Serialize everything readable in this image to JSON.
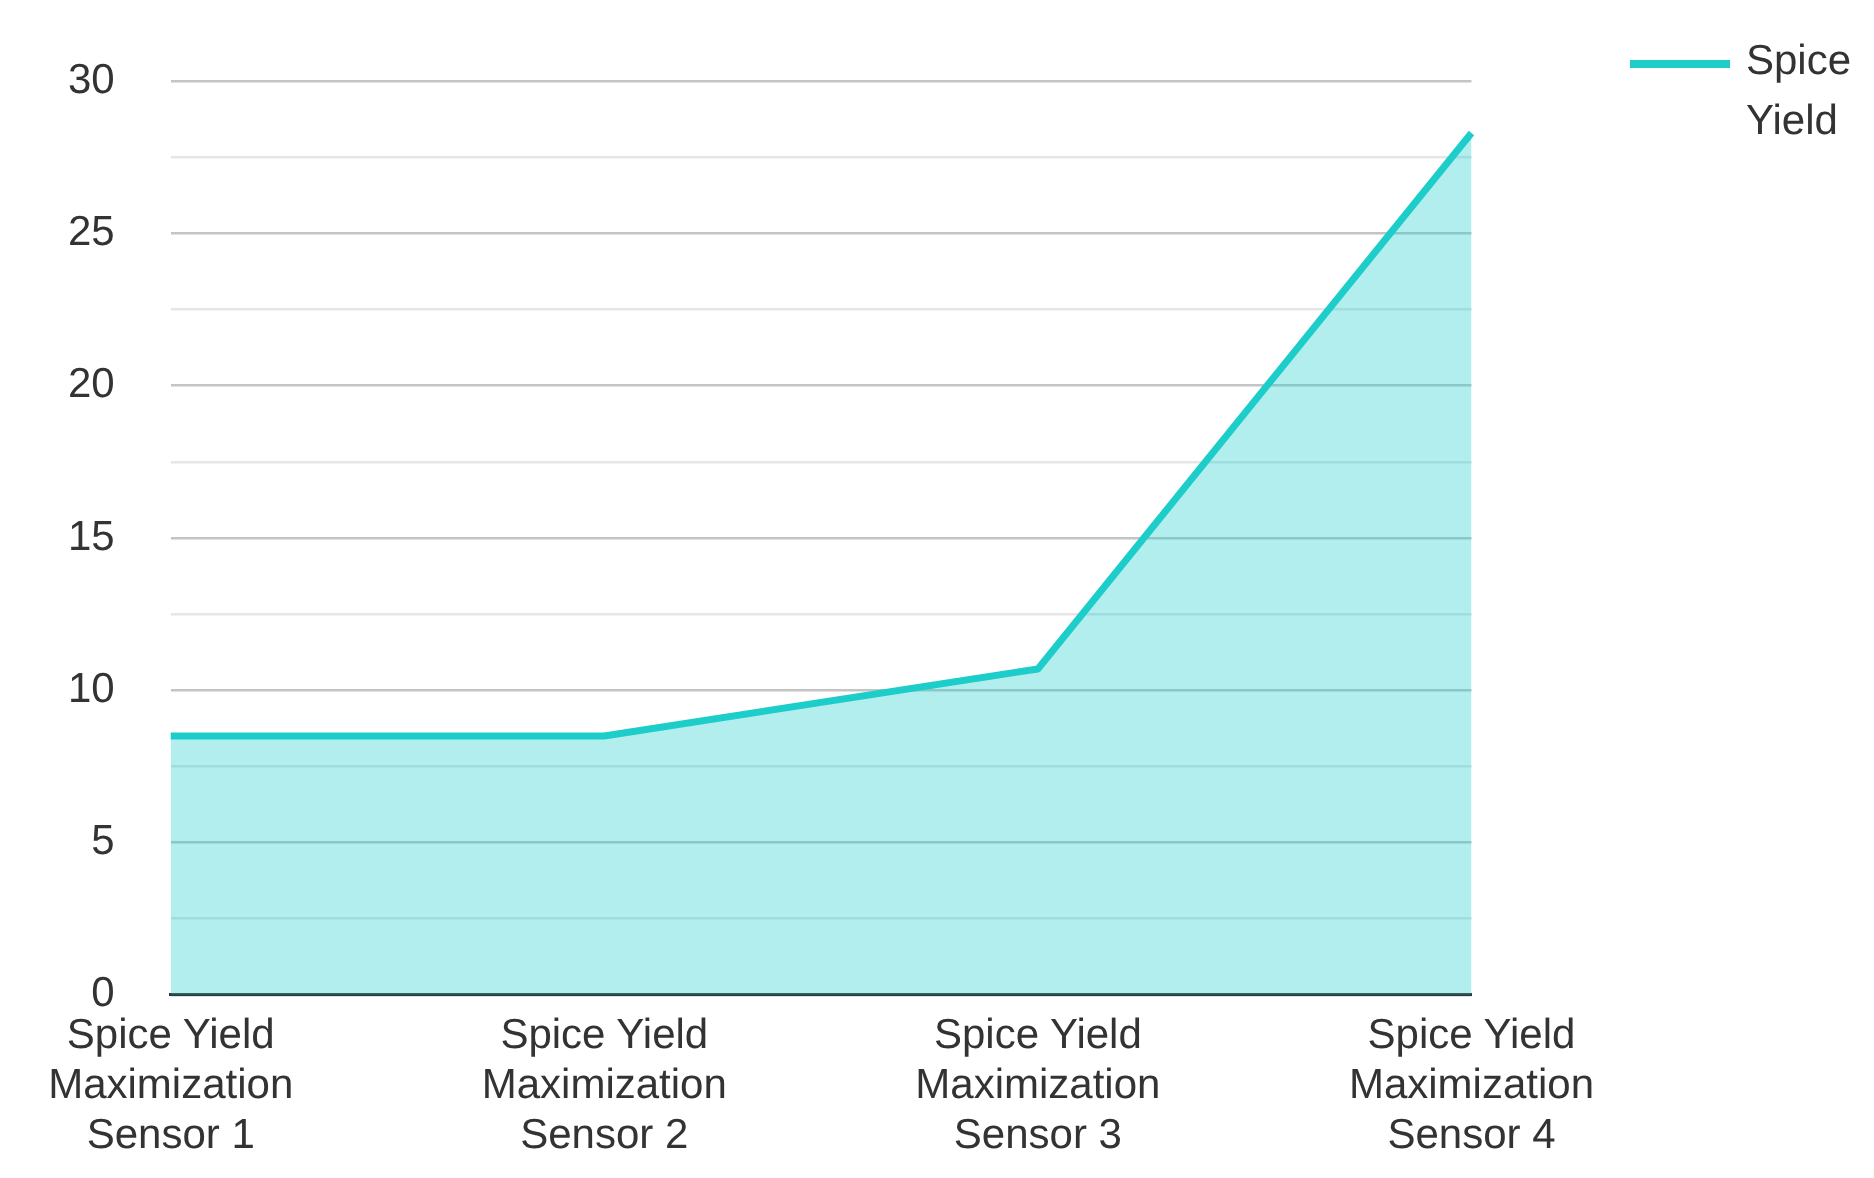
{
  "chart_data": {
    "type": "area",
    "categories": [
      "Spice Yield Maximization Sensor 1",
      "Spice Yield Maximization Sensor 2",
      "Spice Yield Maximization Sensor 3",
      "Spice Yield Maximization Sensor 4"
    ],
    "series": [
      {
        "name": "Spice Yield",
        "color": "#1ccdc9",
        "values": [
          8.5,
          8.5,
          10.7,
          28.3
        ]
      }
    ],
    "ylim": [
      0,
      30
    ],
    "yticks": [
      0,
      {
        "value": 2.5,
        "label": null
      },
      5,
      {
        "value": 7.5,
        "label": null
      },
      10,
      {
        "value": 12.5,
        "label": null
      },
      15,
      {
        "value": 17.5,
        "label": null
      },
      20,
      {
        "value": 22.5,
        "label": null
      },
      25,
      {
        "value": 27.5,
        "label": null
      },
      30
    ],
    "grid": "y",
    "legend": "top right"
  }
}
